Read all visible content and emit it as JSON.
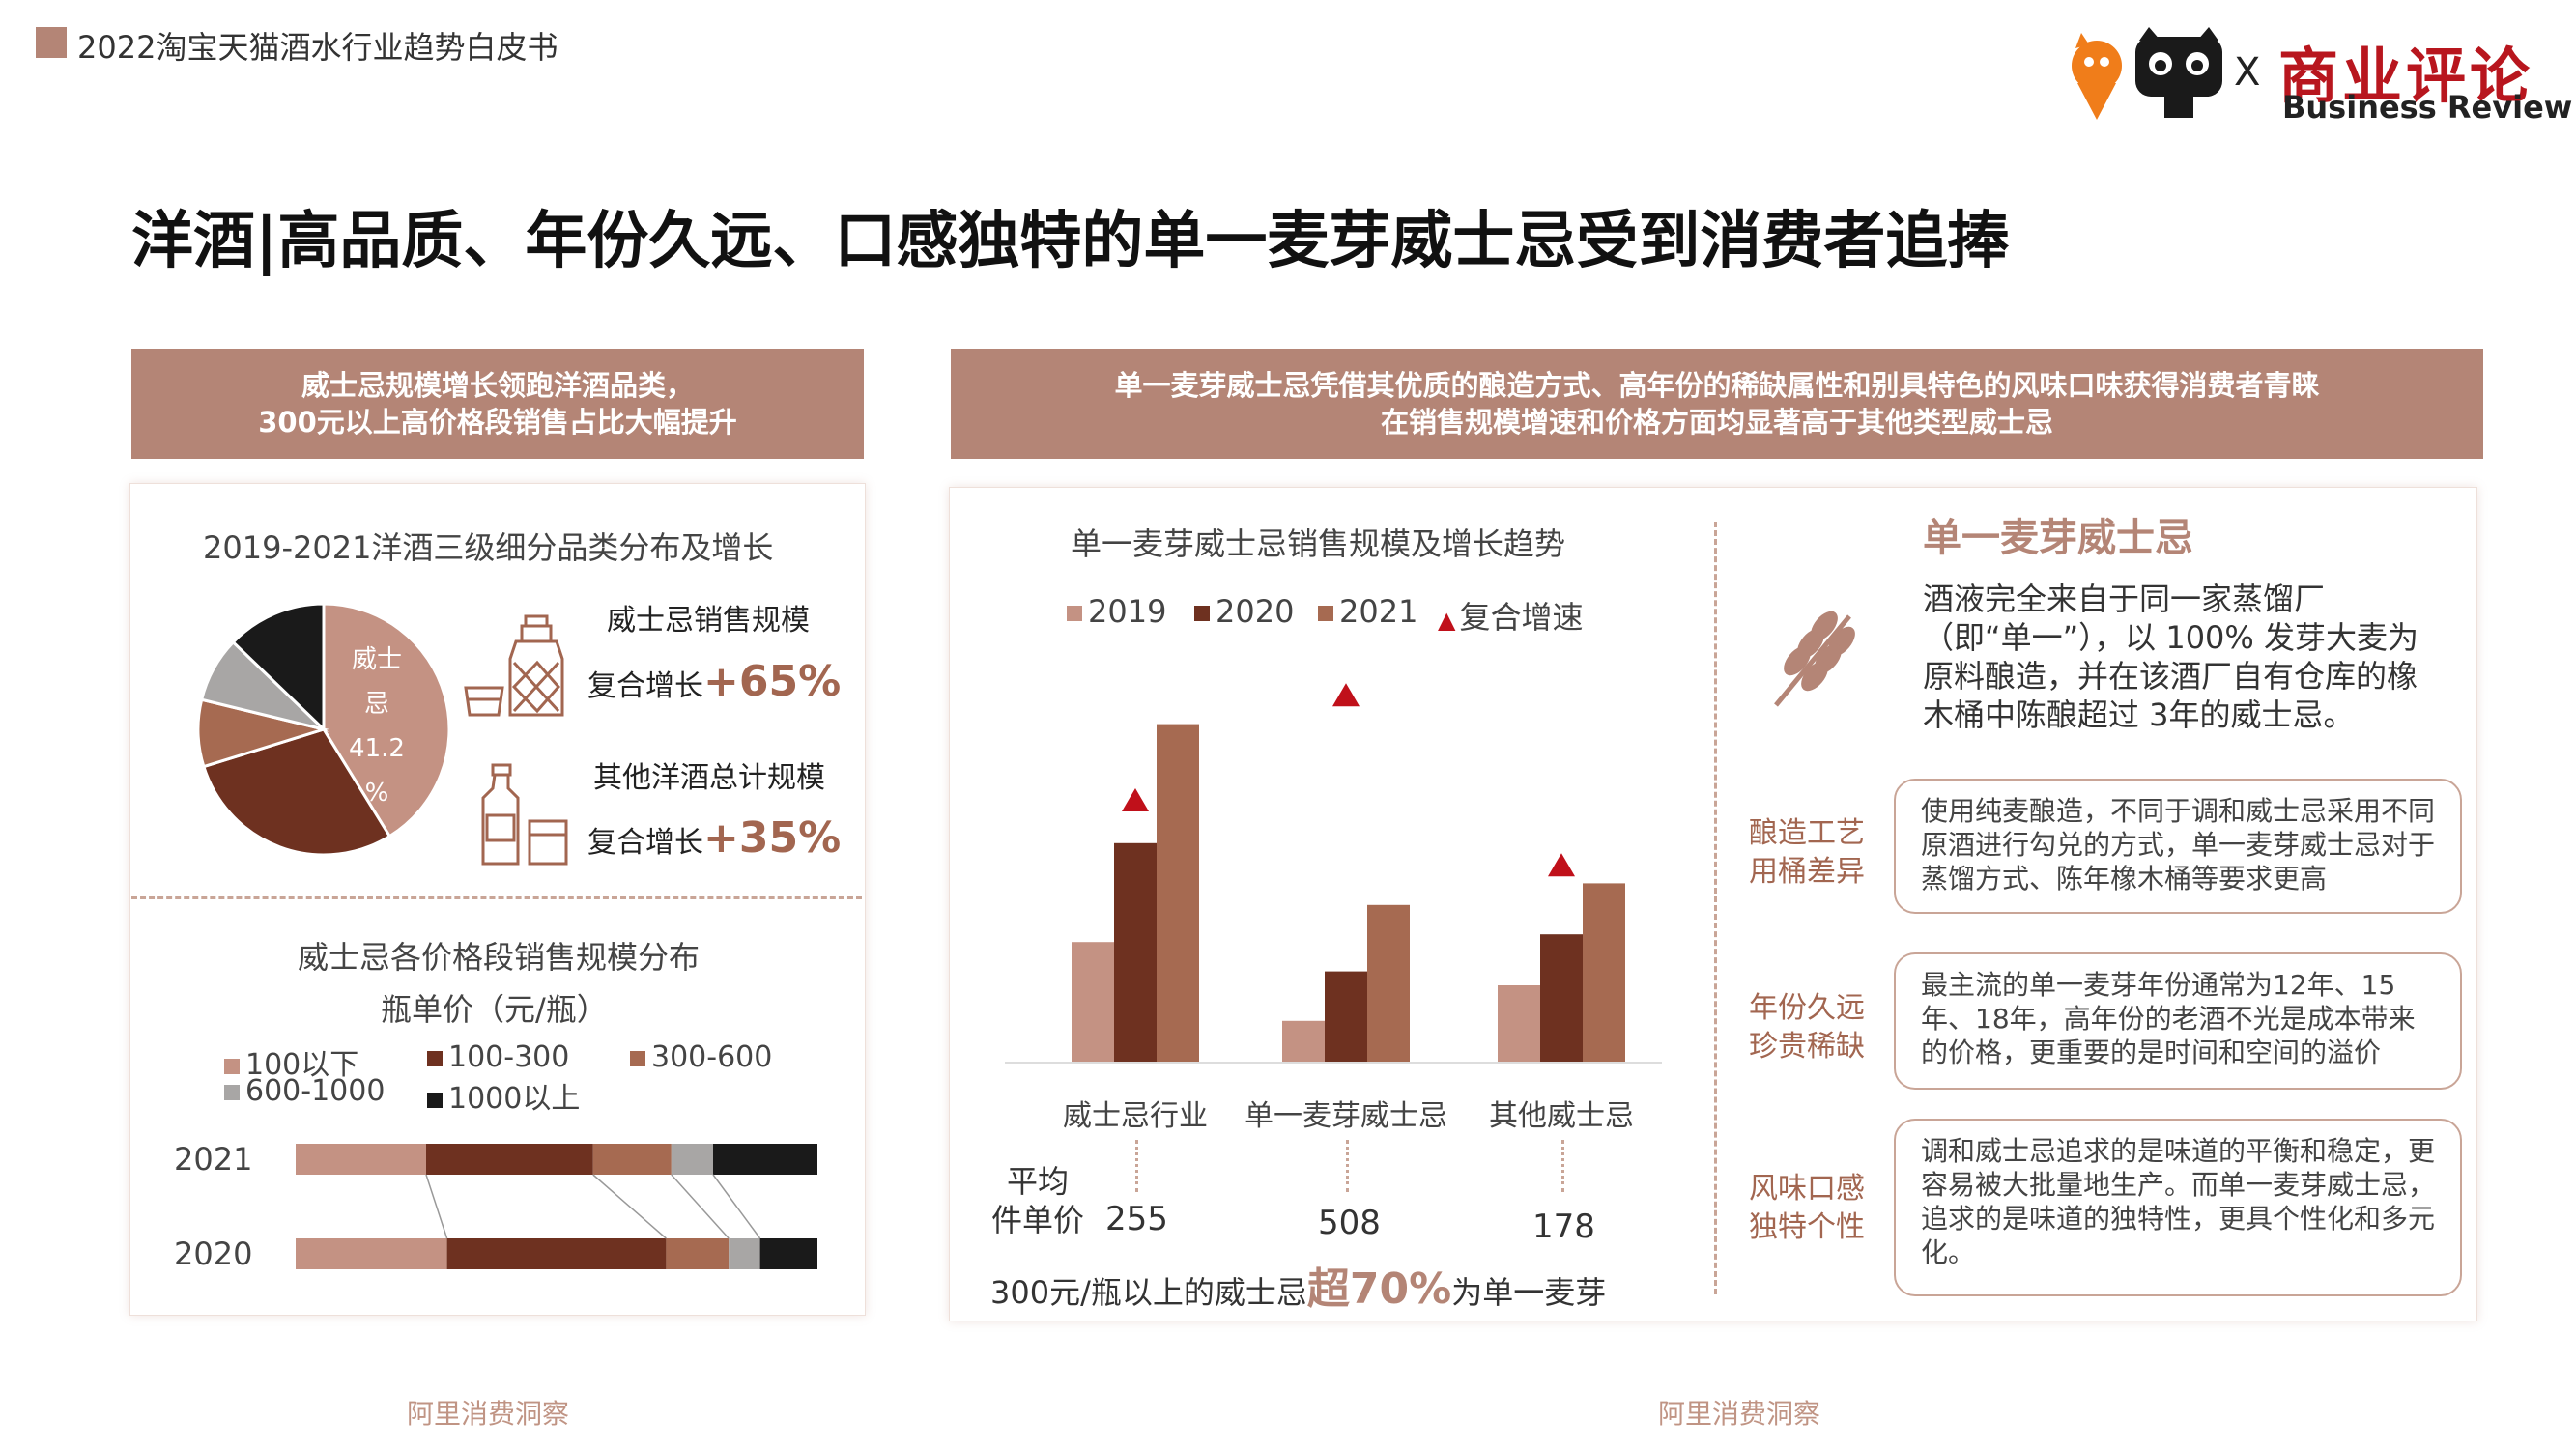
{
  "header": {
    "report_title": "2022淘宝天猫酒水行业趋势白皮书",
    "logo_x": "X",
    "logo_cn": "商业评论",
    "logo_en": "Business Review"
  },
  "page_title": "洋酒|高品质、年份久远、口感独特的单一麦芽威士忌受到消费者追捧",
  "left_banner": {
    "line1": "威士忌规模增长领跑洋酒品类，",
    "line2": "300元以上高价格段销售占比大幅提升"
  },
  "right_banner": {
    "line1": "单一麦芽威士忌凭借其优质的酿造方式、高年份的稀缺属性和别具特色的风味口味获得消费者青睐",
    "line2": "在销售规模增速和价格方面均显著高于其他类型威士忌"
  },
  "pie_section": {
    "title": "2019-2021洋酒三级细分品类分布及增长",
    "whisky_label": "威士忌销售规模",
    "whisky_growth_prefix": "复合增长",
    "whisky_growth_value": "+65%",
    "other_label": "其他洋酒总计规模",
    "other_growth_prefix": "复合增长",
    "other_growth_value": "+35%"
  },
  "price_section": {
    "title": "威士忌各价格段销售规模分布",
    "subtitle": "瓶单价（元/瓶）"
  },
  "bar_section": {
    "title": "单一麦芽威士忌销售规模及增长趋势",
    "avg_label_line1": "平均",
    "avg_label_line2": "件单价",
    "avg_prices": [
      "255",
      "508",
      "178"
    ],
    "bottom_prefix": "300元/瓶以上的威士忌",
    "bottom_highlight": "超70%",
    "bottom_suffix": "为单一麦芽"
  },
  "info_section": {
    "heading": "单一麦芽威士忌",
    "description": "酒液完全来自于同一家蒸馏厂（即“单一”），以 100% 发芽大麦为原料酿造，并在该酒厂自有仓库的橡木桶中陈酿超过 3年的威士忌。",
    "features": [
      {
        "label_line1": "酿造工艺",
        "label_line2": "用桶差异",
        "text": "使用纯麦酿造，不同于调和威士忌采用不同原酒进行勾兑的方式，单一麦芽威士忌对于蒸馏方式、陈年橡木桶等要求更高"
      },
      {
        "label_line1": "年份久远",
        "label_line2": "珍贵稀缺",
        "text": "最主流的单一麦芽年份通常为12年、15年、18年，高年份的老酒不光是成本带来的价格，更重要的是时间和空间的溢价"
      },
      {
        "label_line1": "风味口感",
        "label_line2": "独特个性",
        "text": "调和威士忌追求的是味道的平衡和稳定，更容易被大批量地生产。而单一麦芽威士忌，追求的是味道的独特性，更具个性化和多元化。"
      }
    ]
  },
  "footer": {
    "left_source": "阿里消费洞察",
    "right_source": "阿里消费洞察"
  },
  "colors": {
    "accent": "#b48576",
    "dark_brown": "#6e3120",
    "mid_brown": "#a66a51",
    "light_brown": "#c49283",
    "gray": "#a8a6a5",
    "black": "#1a1a1a",
    "red": "#c0101a"
  },
  "chart_data": [
    {
      "type": "pie",
      "title": "2019-2021洋酒三级细分品类分布及增长",
      "slices": [
        {
          "label": "威士忌",
          "value": 41.2,
          "data_label": "41.2%",
          "label_parts": [
            "威士",
            "忌",
            "41.2",
            "%"
          ]
        },
        {
          "label": "",
          "value": 29.0
        },
        {
          "label": "",
          "value": 8.6
        },
        {
          "label": "",
          "value": 8.4
        },
        {
          "label": "",
          "value": 12.8
        }
      ]
    },
    {
      "type": "bar",
      "orientation": "horizontal",
      "stacked": true,
      "title": "威士忌各价格段销售规模分布",
      "categories": [
        "2021",
        "2020"
      ],
      "legend": [
        "100以下",
        "100-300",
        "300-600",
        "600-1000",
        "1000以上"
      ],
      "series": [
        {
          "name": "100以下",
          "values": [
            25,
            29
          ]
        },
        {
          "name": "100-300",
          "values": [
            32,
            42
          ]
        },
        {
          "name": "300-600",
          "values": [
            15,
            12
          ]
        },
        {
          "name": "600-1000",
          "values": [
            8,
            6
          ]
        },
        {
          "name": "1000以上",
          "values": [
            20,
            11
          ]
        }
      ]
    },
    {
      "type": "bar",
      "title": "单一麦芽威士忌销售规模及增长趋势",
      "categories": [
        "威士忌行业",
        "单一麦芽威士忌",
        "其他威士忌"
      ],
      "legend": [
        "2019",
        "2020",
        "2021",
        "复合增速"
      ],
      "series": [
        {
          "name": "2019",
          "values": [
            78,
            27,
            50
          ]
        },
        {
          "name": "2020",
          "values": [
            142,
            59,
            83
          ]
        },
        {
          "name": "2021",
          "values": [
            219,
            102,
            116
          ]
        }
      ],
      "growth_markers": [
        {
          "category": "威士忌行业",
          "level": 170
        },
        {
          "category": "单一麦芽威士忌",
          "level": 238
        },
        {
          "category": "其他威士忌",
          "level": 128
        }
      ],
      "ylim": [
        0,
        250
      ]
    }
  ]
}
